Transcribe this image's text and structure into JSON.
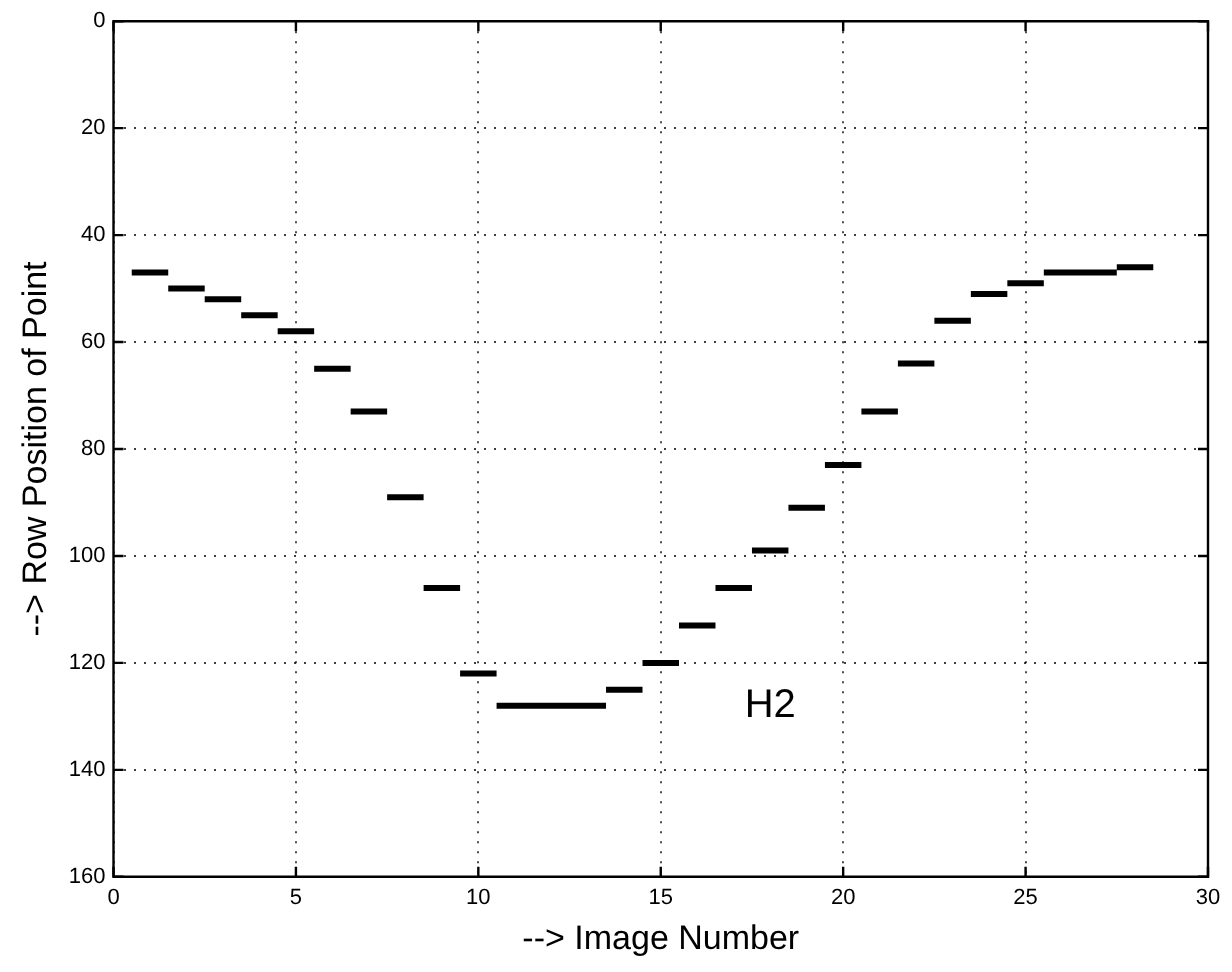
{
  "chart_data": {
    "type": "line",
    "xlabel": "--> Image Number",
    "ylabel": "--> Row Position of Point",
    "annotations": [
      "H2"
    ],
    "xlim": [
      0,
      30
    ],
    "xticks": [
      0,
      5,
      10,
      15,
      20,
      25,
      30
    ],
    "ylim": [
      160,
      0
    ],
    "yticks": [
      0,
      20,
      40,
      60,
      80,
      100,
      120,
      140,
      160
    ],
    "grid": true,
    "legend": false,
    "marker": "none",
    "line_style": "solid",
    "series": [
      {
        "color": "#000000",
        "x": [
          0.5,
          1.5
        ],
        "values": [
          47,
          47
        ]
      },
      {
        "color": "#000000",
        "x": [
          1.5,
          2.5
        ],
        "values": [
          50,
          50
        ]
      },
      {
        "color": "#000000",
        "x": [
          2.5,
          3.5
        ],
        "values": [
          52,
          52
        ]
      },
      {
        "color": "#000000",
        "x": [
          3.5,
          4.5
        ],
        "values": [
          55,
          55
        ]
      },
      {
        "color": "#000000",
        "x": [
          4.5,
          5.5
        ],
        "values": [
          58,
          58
        ]
      },
      {
        "color": "#000000",
        "x": [
          5.5,
          6.5
        ],
        "values": [
          65,
          65
        ]
      },
      {
        "color": "#000000",
        "x": [
          6.5,
          7.5
        ],
        "values": [
          73,
          73
        ]
      },
      {
        "color": "#000000",
        "x": [
          7.5,
          8.5
        ],
        "values": [
          89,
          89
        ]
      },
      {
        "color": "#000000",
        "x": [
          8.5,
          9.5
        ],
        "values": [
          106,
          106
        ]
      },
      {
        "color": "#000000",
        "x": [
          9.5,
          10.5
        ],
        "values": [
          122,
          122
        ]
      },
      {
        "color": "#000000",
        "x": [
          10.5,
          13.5
        ],
        "values": [
          128,
          128
        ]
      },
      {
        "color": "#000000",
        "x": [
          13.5,
          14.5
        ],
        "values": [
          125,
          125
        ]
      },
      {
        "color": "#000000",
        "x": [
          14.5,
          15.5
        ],
        "values": [
          120,
          120
        ]
      },
      {
        "color": "#000000",
        "x": [
          15.5,
          16.5
        ],
        "values": [
          113,
          113
        ]
      },
      {
        "color": "#000000",
        "x": [
          16.5,
          17.5
        ],
        "values": [
          106,
          106
        ]
      },
      {
        "color": "#000000",
        "x": [
          17.5,
          18.5
        ],
        "values": [
          99,
          99
        ]
      },
      {
        "color": "#000000",
        "x": [
          18.5,
          19.5
        ],
        "values": [
          91,
          91
        ]
      },
      {
        "color": "#000000",
        "x": [
          19.5,
          20.5
        ],
        "values": [
          83,
          83
        ]
      },
      {
        "color": "#000000",
        "x": [
          20.5,
          21.5
        ],
        "values": [
          73,
          73
        ]
      },
      {
        "color": "#000000",
        "x": [
          21.5,
          22.5
        ],
        "values": [
          64,
          64
        ]
      },
      {
        "color": "#000000",
        "x": [
          22.5,
          23.5
        ],
        "values": [
          56,
          56
        ]
      },
      {
        "color": "#000000",
        "x": [
          23.5,
          24.5
        ],
        "values": [
          51,
          51
        ]
      },
      {
        "color": "#000000",
        "x": [
          24.5,
          25.5
        ],
        "values": [
          49,
          49
        ]
      },
      {
        "color": "#000000",
        "x": [
          25.5,
          27.5
        ],
        "values": [
          47,
          47
        ]
      },
      {
        "color": "#000000",
        "x": [
          27.5,
          28.5
        ],
        "values": [
          46,
          46
        ]
      }
    ]
  }
}
